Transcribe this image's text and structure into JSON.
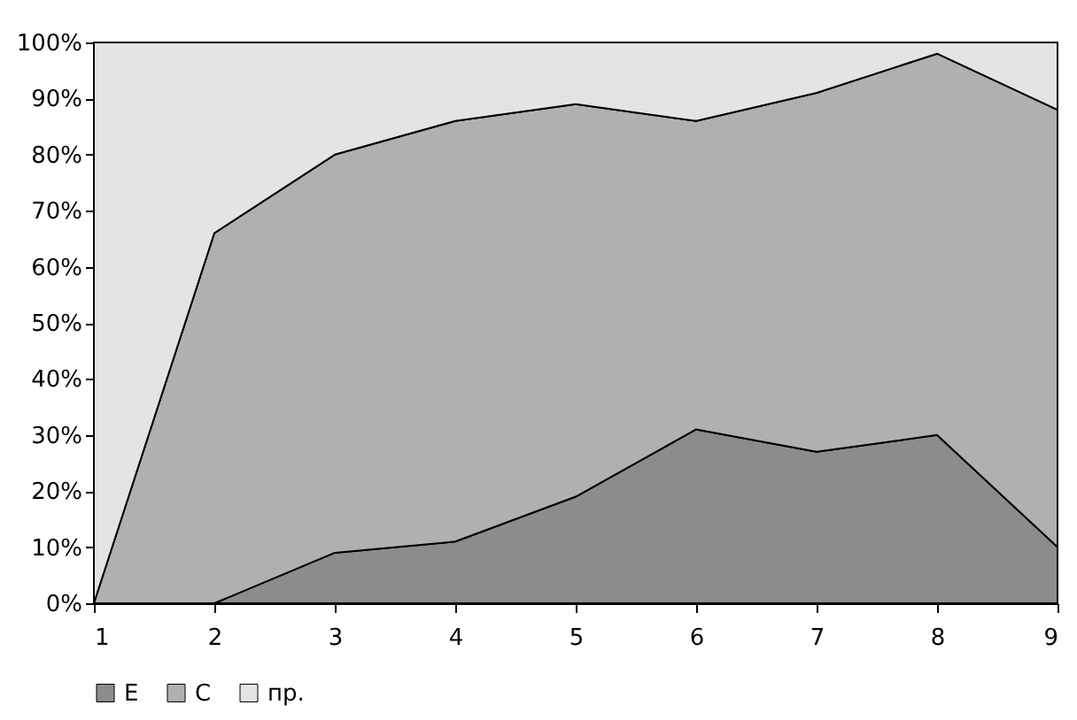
{
  "chart_data": {
    "type": "area",
    "stacked": true,
    "x": [
      1,
      2,
      3,
      4,
      5,
      6,
      7,
      8,
      9
    ],
    "xlim": [
      1,
      9
    ],
    "xticks": [
      1,
      2,
      3,
      4,
      5,
      6,
      7,
      8,
      9
    ],
    "ylim": [
      0,
      100
    ],
    "yticks": [
      {
        "value": 0,
        "label": "0%"
      },
      {
        "value": 10,
        "label": "10%"
      },
      {
        "value": 20,
        "label": "20%"
      },
      {
        "value": 30,
        "label": "30%"
      },
      {
        "value": 40,
        "label": "40%"
      },
      {
        "value": 50,
        "label": "50%"
      },
      {
        "value": 60,
        "label": "60%"
      },
      {
        "value": 70,
        "label": "70%"
      },
      {
        "value": 80,
        "label": "80%"
      },
      {
        "value": 90,
        "label": "90%"
      },
      {
        "value": 100,
        "label": "100%"
      }
    ],
    "legend": "bottom",
    "grid": false,
    "series": [
      {
        "name": "E",
        "color": "#8c8c8c",
        "values": [
          0,
          0,
          9,
          11,
          19,
          31,
          27,
          30,
          10
        ]
      },
      {
        "name": "C",
        "color": "#b0b0b0",
        "values": [
          0,
          66,
          71,
          75,
          70,
          55,
          64,
          68,
          78
        ]
      },
      {
        "name": "пр.",
        "color": "#e4e4e4",
        "values": [
          100,
          34,
          20,
          14,
          11,
          14,
          9,
          2,
          12
        ]
      }
    ]
  }
}
